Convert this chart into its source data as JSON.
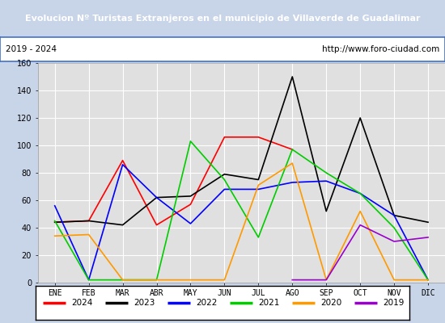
{
  "title": "Evolucion Nº Turistas Extranjeros en el municipio de Villaverde de Guadalimar",
  "title_bg": "#4472c4",
  "subtitle_left": "2019 - 2024",
  "subtitle_right": "http://www.foro-ciudad.com",
  "x_labels": [
    "ENE",
    "FEB",
    "MAR",
    "ABR",
    "MAY",
    "JUN",
    "JUL",
    "AGO",
    "SEP",
    "OCT",
    "NOV",
    "DIC"
  ],
  "ylim": [
    0,
    160
  ],
  "yticks": [
    0,
    20,
    40,
    60,
    80,
    100,
    120,
    140,
    160
  ],
  "series": [
    {
      "year": "2024",
      "color": "#ff0000",
      "values": [
        44,
        45,
        89,
        42,
        57,
        106,
        106,
        97,
        null,
        null,
        null,
        null
      ]
    },
    {
      "year": "2023",
      "color": "#000000",
      "values": [
        44,
        45,
        42,
        62,
        63,
        79,
        75,
        150,
        52,
        120,
        49,
        44
      ]
    },
    {
      "year": "2022",
      "color": "#0000ff",
      "values": [
        56,
        2,
        86,
        62,
        43,
        68,
        68,
        73,
        74,
        65,
        49,
        2
      ]
    },
    {
      "year": "2021",
      "color": "#00cc00",
      "values": [
        45,
        2,
        2,
        2,
        103,
        75,
        33,
        97,
        80,
        65,
        40,
        2
      ]
    },
    {
      "year": "2020",
      "color": "#ff9900",
      "values": [
        34,
        35,
        2,
        2,
        2,
        2,
        71,
        87,
        2,
        52,
        2,
        2
      ]
    },
    {
      "year": "2019",
      "color": "#9900cc",
      "values": [
        null,
        null,
        null,
        null,
        null,
        null,
        null,
        2,
        2,
        42,
        30,
        33
      ]
    }
  ],
  "outer_bg": "#c8d4e8",
  "plot_bg": "#e0e0e0",
  "grid_color": "#ffffff",
  "border_color": "#4472c4"
}
